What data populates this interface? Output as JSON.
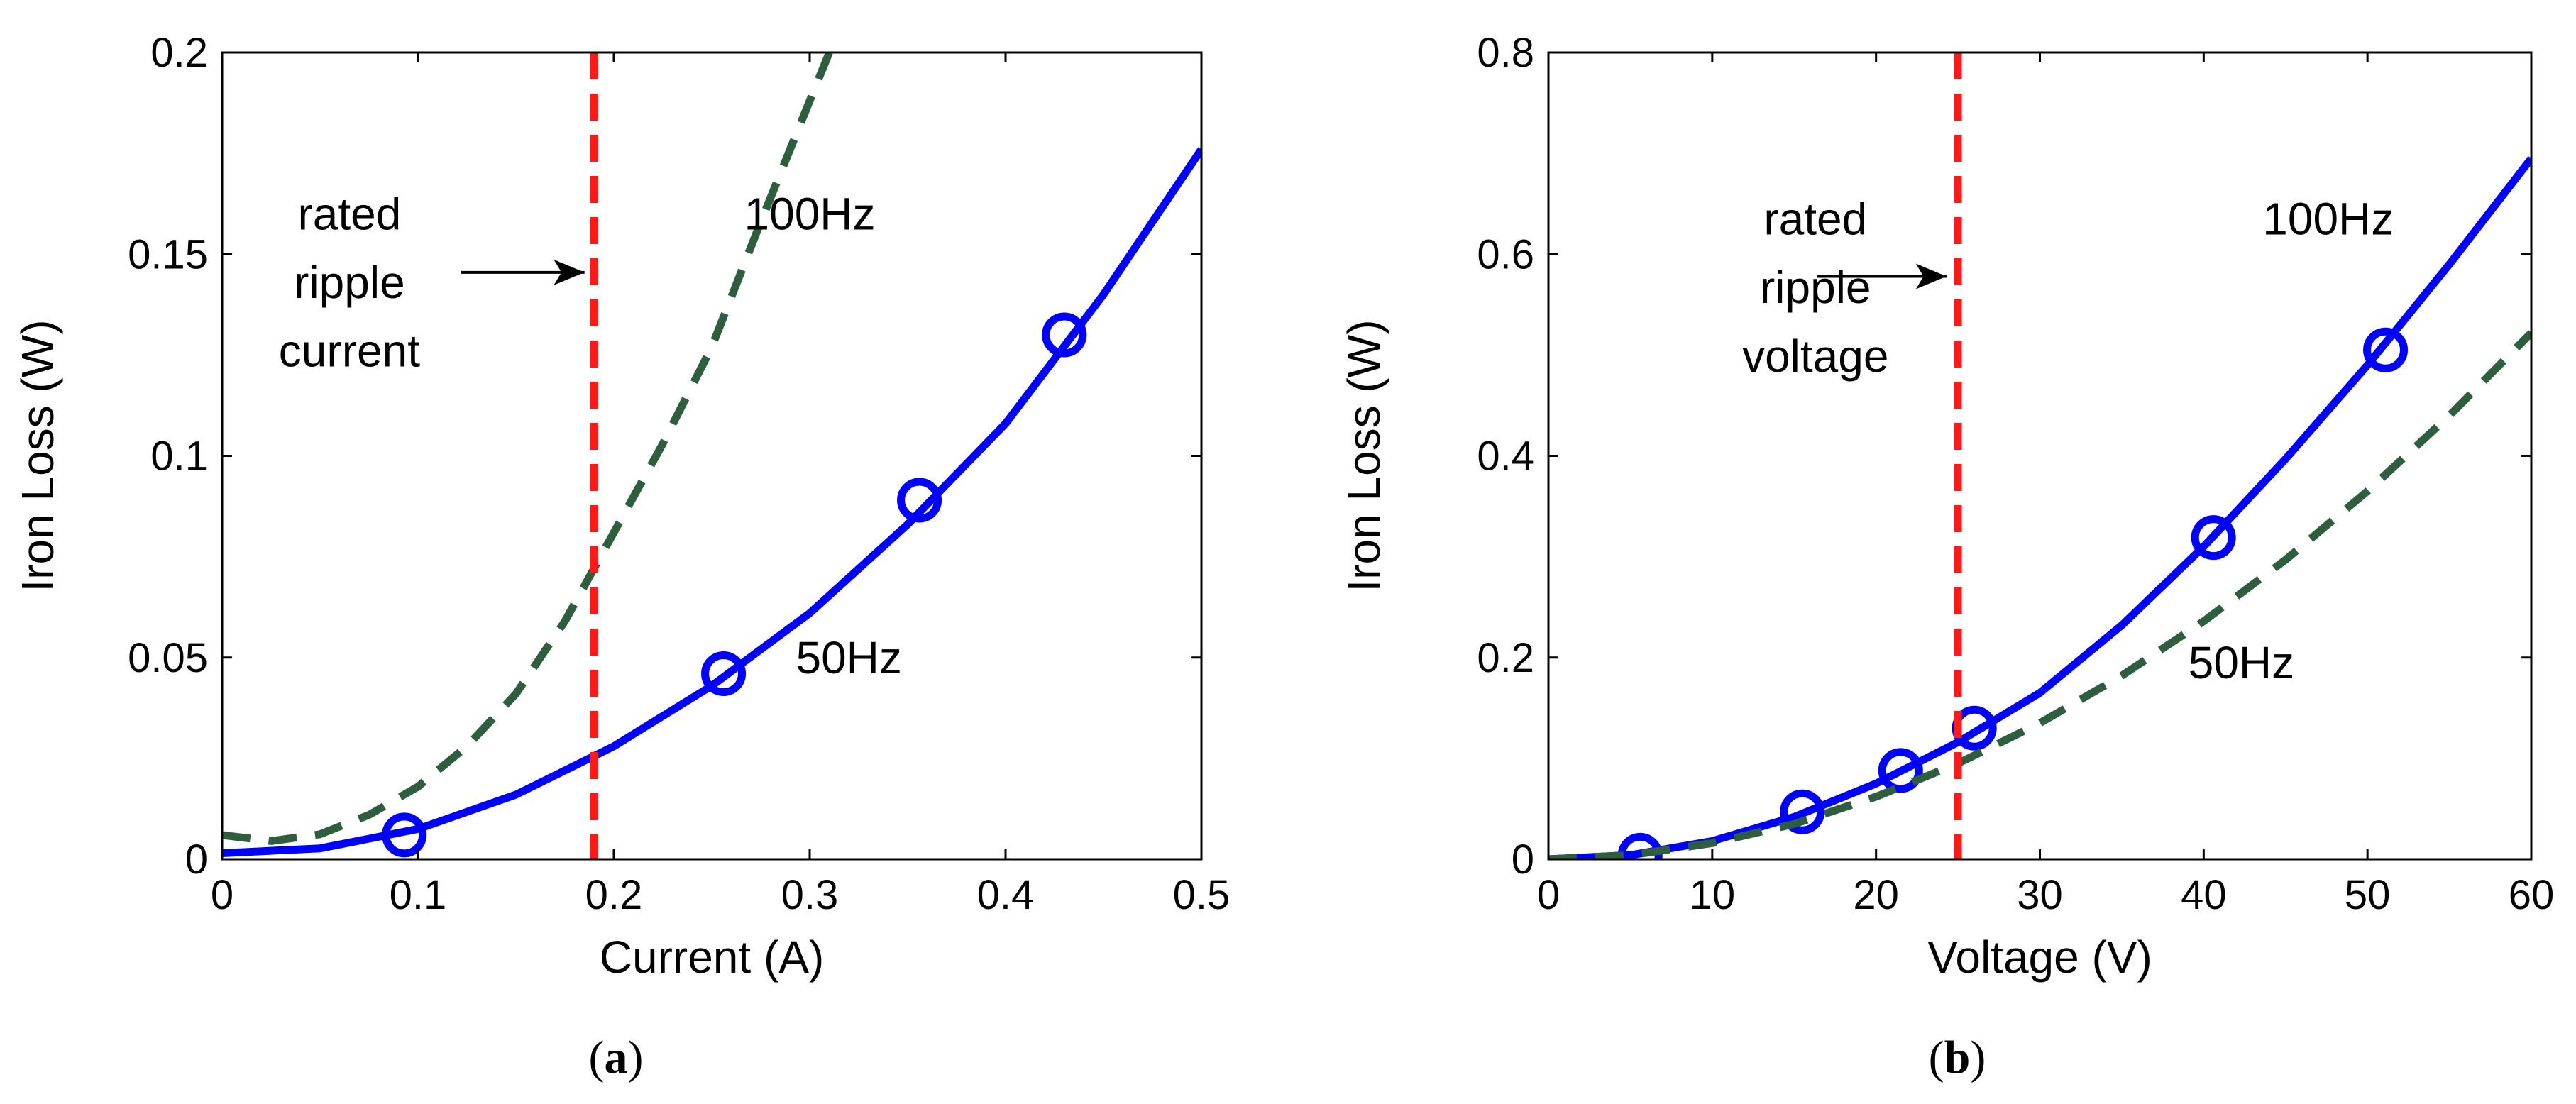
{
  "chart_data": [
    {
      "type": "line",
      "panel": "a",
      "caption": {
        "open": "(",
        "letter": "a",
        "close": ")"
      },
      "xlabel": "Current (A)",
      "ylabel": "Iron Loss (W)",
      "xlim": [
        0,
        0.5
      ],
      "ylim": [
        0,
        0.2
      ],
      "xticks": [
        0,
        0.1,
        0.2,
        0.3,
        0.4,
        0.5
      ],
      "xtick_labels": [
        "0",
        "0.1",
        "0.2",
        "0.3",
        "0.4",
        "0.5"
      ],
      "yticks": [
        0,
        0.05,
        0.1,
        0.15,
        0.2
      ],
      "ytick_labels": [
        "0",
        "0.05",
        "0.1",
        "0.15",
        "0.2"
      ],
      "grid": false,
      "series": [
        {
          "name": "50Hz",
          "style": "solid",
          "color": "#0000ff",
          "x": [
            0,
            0.05,
            0.1,
            0.15,
            0.2,
            0.25,
            0.3,
            0.35,
            0.4,
            0.45,
            0.5
          ],
          "y": [
            0.0015,
            0.0027,
            0.0075,
            0.016,
            0.028,
            0.043,
            0.061,
            0.083,
            0.108,
            0.14,
            0.176
          ],
          "markers": {
            "x": [
              0.093,
              0.256,
              0.356,
              0.43
            ],
            "y": [
              0.006,
              0.046,
              0.089,
              0.13
            ],
            "shape": "circle"
          }
        },
        {
          "name": "100Hz",
          "style": "dashed",
          "color": "#2e5e3e",
          "x": [
            0,
            0.025,
            0.05,
            0.075,
            0.1,
            0.125,
            0.15,
            0.175,
            0.2,
            0.225,
            0.25,
            0.275,
            0.3,
            0.31
          ],
          "y": [
            0.006,
            0.0045,
            0.0062,
            0.011,
            0.018,
            0.028,
            0.041,
            0.059,
            0.081,
            0.103,
            0.127,
            0.158,
            0.188,
            0.2
          ]
        }
      ],
      "reference_line": {
        "x": 0.19,
        "color": "#ff1a1a",
        "style": "dashed"
      },
      "annotations": [
        {
          "text": "rated",
          "x": 0.065,
          "y": 0.16
        },
        {
          "text": "ripple",
          "x": 0.065,
          "y": 0.143
        },
        {
          "text": "current",
          "x": 0.065,
          "y": 0.126
        },
        {
          "text": "100Hz",
          "x": 0.3,
          "y": 0.16
        },
        {
          "text": "50Hz",
          "x": 0.32,
          "y": 0.05
        }
      ],
      "arrow": {
        "from": [
          0.122,
          0.1455
        ],
        "to": [
          0.185,
          0.1455
        ]
      }
    },
    {
      "type": "line",
      "panel": "b",
      "caption": {
        "open": "(",
        "letter": "b",
        "close": ")"
      },
      "xlabel": "Voltage (V)",
      "ylabel": "Iron Loss (W)",
      "xlim": [
        0,
        60
      ],
      "ylim": [
        0,
        0.8
      ],
      "xticks": [
        0,
        10,
        20,
        30,
        40,
        50,
        60
      ],
      "xtick_labels": [
        "0",
        "10",
        "20",
        "30",
        "40",
        "50",
        "60"
      ],
      "yticks": [
        0,
        0.2,
        0.4,
        0.6,
        0.8
      ],
      "ytick_labels": [
        "0",
        "0.2",
        "0.4",
        "0.6",
        "0.8"
      ],
      "grid": false,
      "series": [
        {
          "name": "100Hz",
          "style": "solid",
          "color": "#0000ff",
          "x": [
            0,
            5,
            10,
            15,
            20,
            25,
            30,
            35,
            40,
            45,
            50,
            55,
            60
          ],
          "y": [
            0,
            0.004,
            0.018,
            0.042,
            0.075,
            0.116,
            0.165,
            0.232,
            0.31,
            0.397,
            0.49,
            0.59,
            0.695
          ],
          "markers": {
            "x": [
              5.6,
              15.5,
              21.5,
              26,
              40.6,
              51.1
            ],
            "y": [
              0.004,
              0.047,
              0.088,
              0.13,
              0.319,
              0.505
            ],
            "shape": "circle"
          }
        },
        {
          "name": "50Hz",
          "style": "dashed",
          "color": "#2e5e3e",
          "x": [
            0,
            5,
            10,
            15,
            20,
            25,
            30,
            35,
            40,
            45,
            50,
            55,
            60
          ],
          "y": [
            0,
            0.004,
            0.016,
            0.035,
            0.062,
            0.095,
            0.135,
            0.182,
            0.236,
            0.297,
            0.365,
            0.44,
            0.522
          ]
        }
      ],
      "reference_line": {
        "x": 25,
        "color": "#ff1a1a",
        "style": "dashed"
      },
      "annotations": [
        {
          "text": "rated",
          "x": 16.3,
          "y": 0.635
        },
        {
          "text": "ripple",
          "x": 16.3,
          "y": 0.567
        },
        {
          "text": "voltage",
          "x": 16.3,
          "y": 0.499
        },
        {
          "text": "100Hz",
          "x": 47.6,
          "y": 0.635
        },
        {
          "text": "50Hz",
          "x": 42.3,
          "y": 0.195
        }
      ],
      "arrow": {
        "from": [
          16.4,
          0.578
        ],
        "to": [
          24.3,
          0.578
        ]
      }
    }
  ]
}
